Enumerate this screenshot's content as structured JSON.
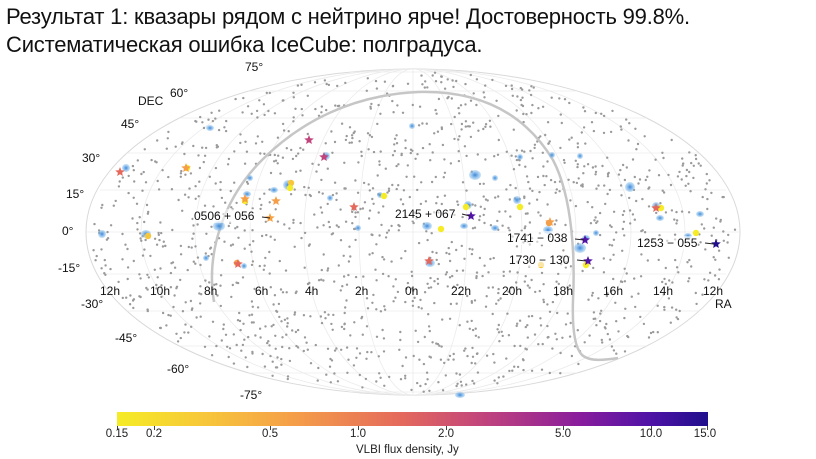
{
  "title": {
    "line1": "Результат 1: квазары рядом с нейтрино ярче!  Достоверность 99.8%.",
    "line2": "Систематическая ошибка IceCube: полградуса."
  },
  "map": {
    "dec_axis_label": "DEC",
    "ra_axis_label": "RA",
    "dec_labels": [
      "75°",
      "60°",
      "45°",
      "30°",
      "15°",
      "0°",
      "-15°",
      "-30°",
      "-45°",
      "-60°",
      "-75°"
    ],
    "ra_labels": [
      "12h",
      "10h",
      "8h",
      "6h",
      "4h",
      "2h",
      "0h",
      "22h",
      "20h",
      "18h",
      "16h",
      "14h",
      "12h"
    ],
    "sources": [
      {
        "name": "0506 + 056"
      },
      {
        "name": "2145 + 067"
      },
      {
        "name": "1741 − 038"
      },
      {
        "name": "1730 − 130"
      },
      {
        "name": "1253 − 055"
      }
    ],
    "colors": {
      "background_points": "#9a9a9a",
      "neutrino_regions": "#5aa5e6",
      "galactic_plane": "#c6c6c6"
    }
  },
  "colorbar": {
    "label": "VLBI flux density, Jy",
    "ticks": [
      "0.15",
      "0.2",
      "0.5",
      "1.0",
      "2.0",
      "5.0",
      "10.0",
      "15.0"
    ],
    "colors": [
      "#f5ec26",
      "#f59e49",
      "#e4695c",
      "#c1447c",
      "#8a1d9c",
      "#200f8c"
    ]
  }
}
